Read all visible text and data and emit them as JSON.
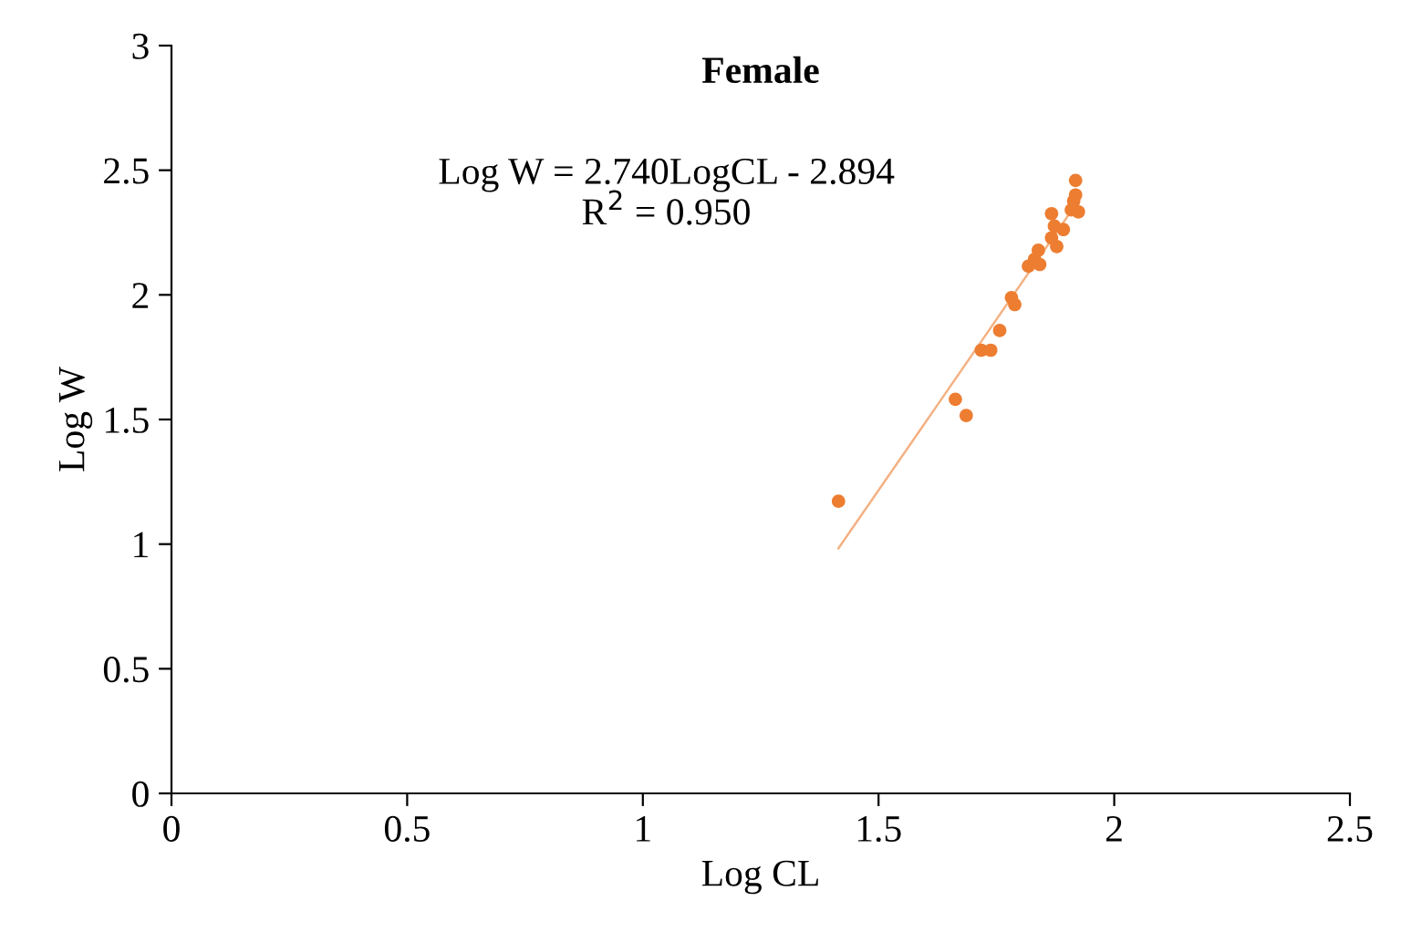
{
  "chart_data": {
    "type": "scatter",
    "title": "Female",
    "xlabel": "Log CL",
    "ylabel": "Log W",
    "annotations": [
      "Log W = 2.740LogCL - 2.894\nR$^{2}$ = 0.950"
    ],
    "series": [
      {
        "color": "#ed7d31",
        "marker": "circle",
        "x": [
          1.415,
          1.663,
          1.686,
          1.718,
          1.738,
          1.757,
          1.782,
          1.789,
          1.818,
          1.831,
          1.839,
          1.842,
          1.867,
          1.867,
          1.873,
          1.878,
          1.892,
          1.909,
          1.918,
          1.918,
          1.924,
          1.914
        ],
        "values": [
          1.172,
          1.581,
          1.516,
          1.778,
          1.778,
          1.857,
          1.989,
          1.961,
          2.115,
          2.143,
          2.179,
          2.122,
          2.326,
          2.229,
          2.276,
          2.194,
          2.262,
          2.341,
          2.459,
          2.401,
          2.333,
          2.376
        ]
      },
      {
        "type": "line",
        "marker": "none",
        "color": "#f4b183",
        "x": [
          1.415,
          1.92
        ],
        "values": [
          0.983,
          2.367
        ]
      }
    ],
    "xlim": [
      0,
      2.5
    ],
    "xticks": [
      0,
      0.5,
      1,
      1.5,
      2,
      2.5
    ],
    "ylim": [
      0,
      3
    ],
    "yticks": [
      0,
      0.5,
      1,
      1.5,
      2,
      2.5,
      3
    ],
    "grid": false,
    "legend": false
  }
}
